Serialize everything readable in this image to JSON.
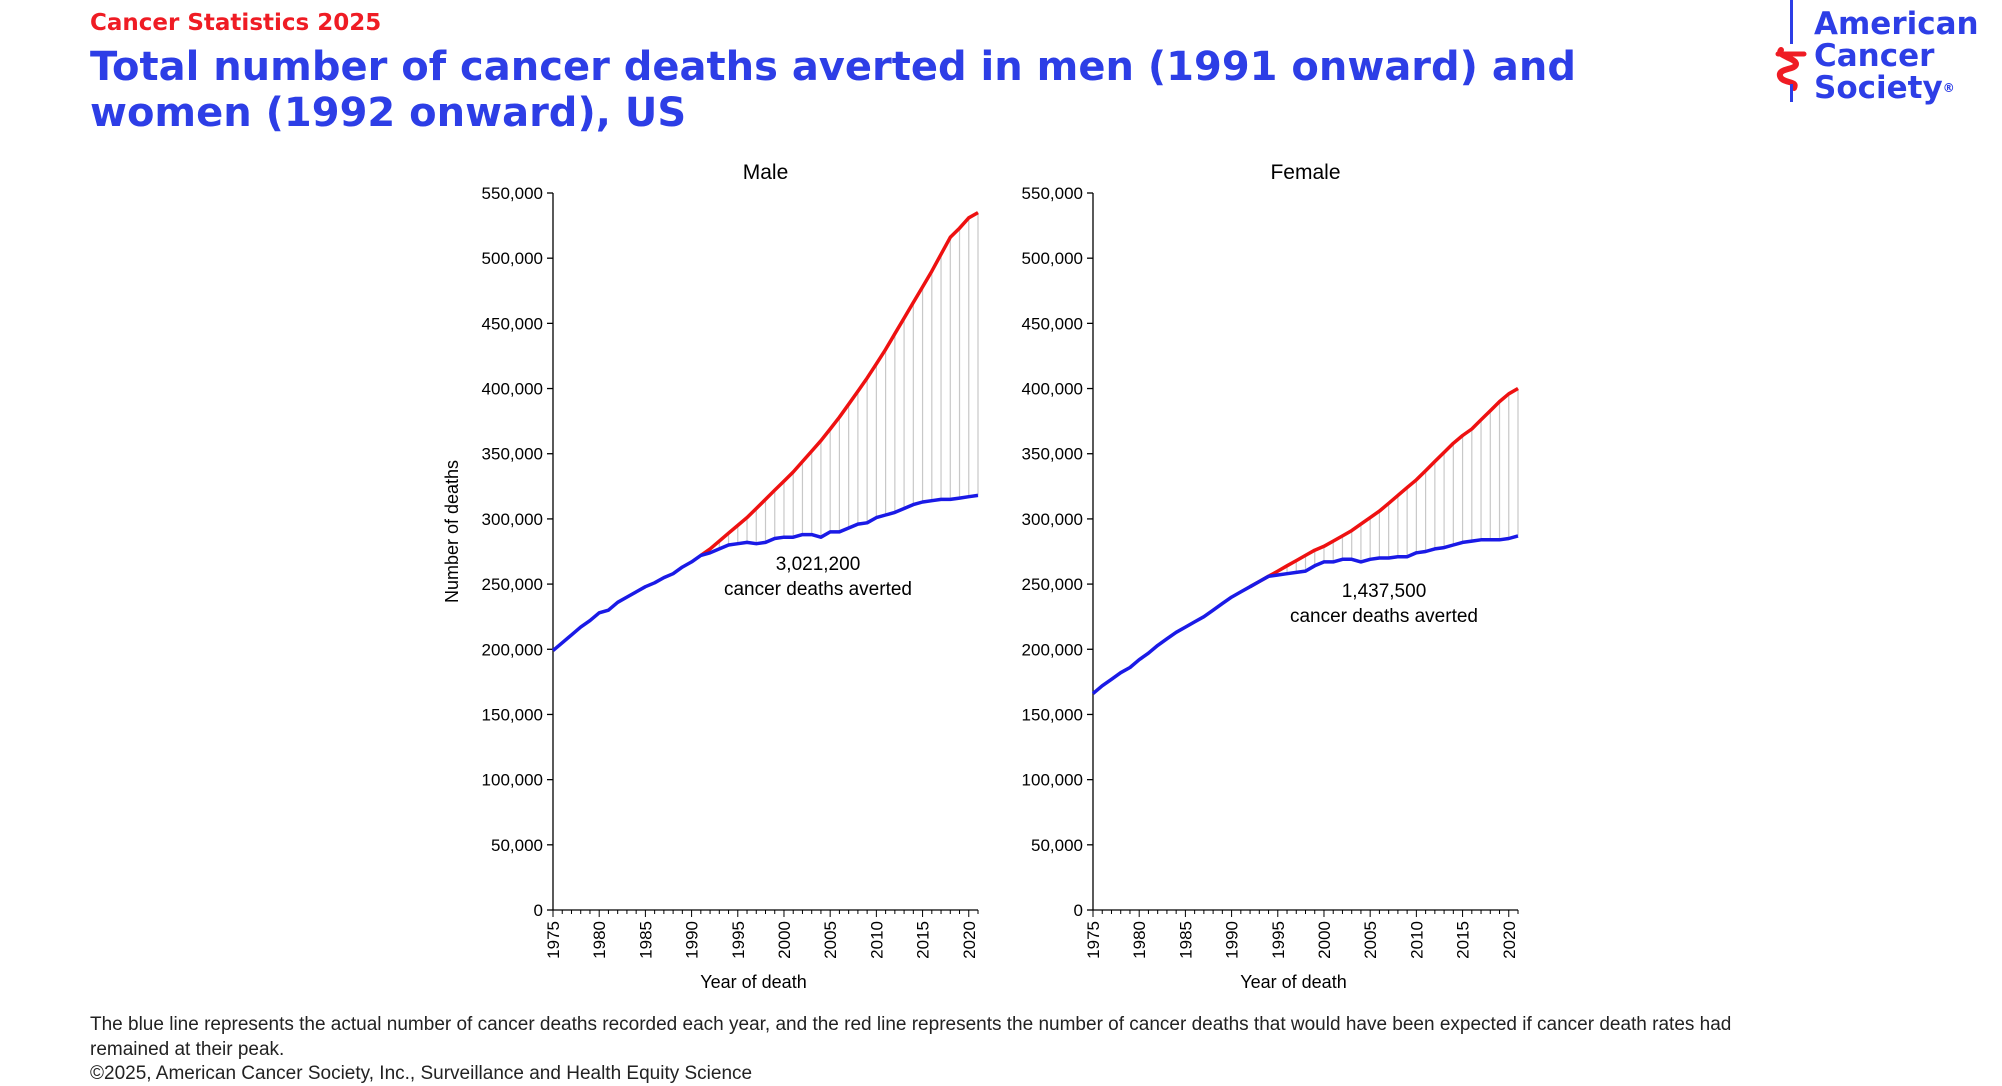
{
  "header": {
    "kicker": "Cancer Statistics 2025",
    "title": "Total number of cancer deaths averted in men (1991 onward) and women (1992 onward), US"
  },
  "logo": {
    "line1": "American",
    "line2": "Cancer",
    "line3": "Society",
    "registered": "®"
  },
  "colors": {
    "title": "#2d3ee6",
    "kicker": "#ef1c24",
    "actual_line": "#1a1ae6",
    "expected_line": "#ee1111",
    "averted_fill_lines": "#c8c8c8"
  },
  "chart_data": [
    {
      "type": "line",
      "title": "Male",
      "xlabel": "Year of death",
      "ylabel": "Number of deaths",
      "xlim": [
        1975,
        2021
      ],
      "ylim": [
        0,
        550000
      ],
      "yticks": [
        0,
        50000,
        100000,
        150000,
        200000,
        250000,
        300000,
        350000,
        400000,
        450000,
        500000,
        550000
      ],
      "ytick_labels": [
        "0",
        "50,000",
        "100,000",
        "150,000",
        "200,000",
        "250,000",
        "300,000",
        "350,000",
        "400,000",
        "450,000",
        "500,000",
        "550,000"
      ],
      "xticks": [
        1975,
        1980,
        1985,
        1990,
        1995,
        2000,
        2005,
        2010,
        2015,
        2020
      ],
      "xtick_labels": [
        "1975",
        "1980",
        "1985",
        "1990",
        "1995",
        "2000",
        "2005",
        "2010",
        "2015",
        "2020"
      ],
      "annotation": {
        "value": "3,021,200",
        "text": "cancer deaths averted"
      },
      "series": [
        {
          "role": "actual",
          "color": "#1a1ae6",
          "x": [
            1975,
            1976,
            1977,
            1978,
            1979,
            1980,
            1981,
            1982,
            1983,
            1984,
            1985,
            1986,
            1987,
            1988,
            1989,
            1990,
            1991,
            1992,
            1993,
            1994,
            1995,
            1996,
            1997,
            1998,
            1999,
            2000,
            2001,
            2002,
            2003,
            2004,
            2005,
            2006,
            2007,
            2008,
            2009,
            2010,
            2011,
            2012,
            2013,
            2014,
            2015,
            2016,
            2017,
            2018,
            2019,
            2020,
            2021
          ],
          "values": [
            199000,
            205000,
            211000,
            217000,
            222000,
            228000,
            230000,
            236000,
            240000,
            244000,
            248000,
            251000,
            255000,
            258000,
            263000,
            267000,
            272000,
            274000,
            277000,
            280000,
            281000,
            282000,
            281000,
            282000,
            285000,
            286000,
            286000,
            288000,
            288000,
            286000,
            290000,
            290000,
            293000,
            296000,
            297000,
            301000,
            303000,
            305000,
            308000,
            311000,
            313000,
            314000,
            315000,
            315000,
            316000,
            317000,
            318000
          ]
        },
        {
          "role": "expected",
          "color": "#ee1111",
          "x": [
            1991,
            1992,
            1993,
            1994,
            1995,
            1996,
            1997,
            1998,
            1999,
            2000,
            2001,
            2002,
            2003,
            2004,
            2005,
            2006,
            2007,
            2008,
            2009,
            2010,
            2011,
            2012,
            2013,
            2014,
            2015,
            2016,
            2017,
            2018,
            2019,
            2020,
            2021
          ],
          "values": [
            272000,
            277000,
            283000,
            289000,
            295000,
            301000,
            308000,
            315000,
            322000,
            329000,
            336000,
            344000,
            352000,
            360000,
            369000,
            378000,
            388000,
            398000,
            408000,
            419000,
            430000,
            442000,
            454000,
            466000,
            478000,
            490000,
            503000,
            516000,
            523000,
            531000,
            535000
          ]
        }
      ]
    },
    {
      "type": "line",
      "title": "Female",
      "xlabel": "Year of death",
      "ylabel": "",
      "xlim": [
        1975,
        2021
      ],
      "ylim": [
        0,
        550000
      ],
      "yticks": [
        0,
        50000,
        100000,
        150000,
        200000,
        250000,
        300000,
        350000,
        400000,
        450000,
        500000,
        550000
      ],
      "ytick_labels": [
        "0",
        "50,000",
        "100,000",
        "150,000",
        "200,000",
        "250,000",
        "300,000",
        "350,000",
        "400,000",
        "450,000",
        "500,000",
        "550,000"
      ],
      "xticks": [
        1975,
        1980,
        1985,
        1990,
        1995,
        2000,
        2005,
        2010,
        2015,
        2020
      ],
      "xtick_labels": [
        "1975",
        "1980",
        "1985",
        "1990",
        "1995",
        "2000",
        "2005",
        "2010",
        "2015",
        "2020"
      ],
      "annotation": {
        "value": "1,437,500",
        "text": "cancer deaths averted"
      },
      "series": [
        {
          "role": "actual",
          "color": "#1a1ae6",
          "x": [
            1975,
            1976,
            1977,
            1978,
            1979,
            1980,
            1981,
            1982,
            1983,
            1984,
            1985,
            1986,
            1987,
            1988,
            1989,
            1990,
            1991,
            1992,
            1993,
            1994,
            1995,
            1996,
            1997,
            1998,
            1999,
            2000,
            2001,
            2002,
            2003,
            2004,
            2005,
            2006,
            2007,
            2008,
            2009,
            2010,
            2011,
            2012,
            2013,
            2014,
            2015,
            2016,
            2017,
            2018,
            2019,
            2020,
            2021
          ],
          "values": [
            166000,
            172000,
            177000,
            182000,
            186000,
            192000,
            197000,
            203000,
            208000,
            213000,
            217000,
            221000,
            225000,
            230000,
            235000,
            240000,
            244000,
            248000,
            252000,
            256000,
            257000,
            258000,
            259000,
            260000,
            264000,
            267000,
            267000,
            269000,
            269000,
            267000,
            269000,
            270000,
            270000,
            271000,
            271000,
            274000,
            275000,
            277000,
            278000,
            280000,
            282000,
            283000,
            284000,
            284000,
            284000,
            285000,
            287000
          ]
        },
        {
          "role": "expected",
          "color": "#ee1111",
          "x": [
            1992,
            1993,
            1994,
            1995,
            1996,
            1997,
            1998,
            1999,
            2000,
            2001,
            2002,
            2003,
            2004,
            2005,
            2006,
            2007,
            2008,
            2009,
            2010,
            2011,
            2012,
            2013,
            2014,
            2015,
            2016,
            2017,
            2018,
            2019,
            2020,
            2021
          ],
          "values": [
            248000,
            252000,
            256000,
            260000,
            264000,
            268000,
            272000,
            276000,
            279000,
            283000,
            287000,
            291000,
            296000,
            301000,
            306000,
            312000,
            318000,
            324000,
            330000,
            337000,
            344000,
            351000,
            358000,
            364000,
            369000,
            376000,
            383000,
            390000,
            396000,
            400000
          ]
        }
      ]
    }
  ],
  "footnote": "The blue line represents the actual number of cancer deaths recorded each year, and the red line represents the number of cancer deaths that would have been expected if cancer death rates had remained at their peak.",
  "copyright": "©2025, American Cancer Society, Inc., Surveillance and Health Equity Science"
}
